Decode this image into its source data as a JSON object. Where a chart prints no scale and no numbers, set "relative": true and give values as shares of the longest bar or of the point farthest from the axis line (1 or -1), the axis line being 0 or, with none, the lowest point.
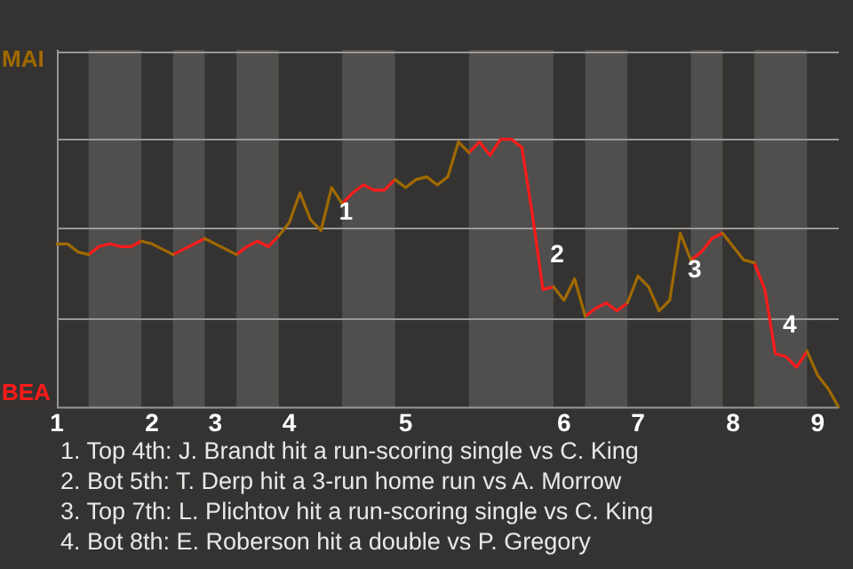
{
  "chart_data": {
    "type": "line",
    "relative": true,
    "marker": "none",
    "line_style": "solid",
    "ref_lines": [
      {
        "axis": "y",
        "value": 0.33,
        "color": "#9a9896"
      },
      {
        "axis": "y",
        "value": 0.67,
        "color": "#9a9896"
      },
      {
        "axis": "y",
        "value": 1,
        "color": "#9a9896"
      },
      {
        "axis": "y",
        "value": 1.33,
        "color": "#9a9896"
      }
    ],
    "categories": [
      "1",
      null,
      null,
      null,
      null,
      null,
      null,
      null,
      null,
      "2",
      null,
      null,
      null,
      null,
      null,
      "3",
      null,
      null,
      null,
      null,
      null,
      null,
      "4",
      null,
      null,
      null,
      null,
      null,
      null,
      null,
      null,
      null,
      null,
      "5",
      null,
      null,
      null,
      null,
      null,
      null,
      null,
      null,
      null,
      null,
      null,
      null,
      null,
      null,
      "6",
      null,
      null,
      null,
      null,
      null,
      null,
      "7",
      null,
      null,
      null,
      null,
      null,
      null,
      null,
      null,
      "8",
      null,
      null,
      null,
      null,
      null,
      null,
      null,
      "9",
      null,
      null
    ],
    "series": [
      {
        "name": "MAI",
        "color": "#a06a00",
        "values": [
          0.61,
          0.61,
          0.58,
          0.57,
          null,
          null,
          null,
          null,
          0.62,
          0.61,
          0.59,
          0.57,
          null,
          null,
          0.63,
          0.61,
          0.59,
          0.57,
          null,
          null,
          null,
          0.64,
          0.69,
          0.8,
          0.7,
          0.66,
          0.82,
          0.76,
          null,
          null,
          null,
          null,
          0.85,
          0.82,
          0.85,
          0.86,
          0.83,
          0.86,
          0.99,
          0.95,
          null,
          null,
          null,
          null,
          null,
          null,
          null,
          0.45,
          0.4,
          0.48,
          0.34,
          null,
          null,
          null,
          0.39,
          0.49,
          0.45,
          0.36,
          0.4,
          0.65,
          0.55,
          null,
          null,
          0.65,
          0.6,
          0.55,
          0.54,
          null,
          null,
          null,
          null,
          0.21,
          0.12,
          0.07,
          0
        ]
      },
      {
        "name": "BEA",
        "color": "#ff1a1a",
        "values": [
          null,
          null,
          null,
          0.57,
          0.6,
          0.61,
          0.6,
          0.6,
          0.62,
          null,
          null,
          0.57,
          0.59,
          0.61,
          0.63,
          null,
          null,
          0.57,
          0.6,
          0.62,
          0.6,
          0.64,
          null,
          null,
          null,
          null,
          null,
          0.76,
          0.8,
          0.83,
          0.81,
          0.81,
          0.85,
          null,
          null,
          null,
          null,
          null,
          null,
          0.95,
          0.99,
          0.94,
          1,
          1,
          0.97,
          0.72,
          0.44,
          0.45,
          null,
          null,
          0.34,
          0.37,
          0.39,
          0.36,
          0.39,
          null,
          null,
          null,
          null,
          null,
          0.55,
          0.58,
          0.63,
          0.65,
          null,
          null,
          0.54,
          0.44,
          0.2,
          0.19,
          0.15,
          0.21,
          null,
          null,
          null
        ]
      }
    ],
    "annotations": [
      "1",
      "2",
      "3",
      "4",
      "1. Top 4th: J. Brandt hit a run-scoring single vs C. King",
      "2. Bot 5th: T. Derp hit a 3-run home run vs A. Morrow",
      "3. Top 7th: L. Plichtov hit a run-scoring single vs C. King",
      "4. Bot 8th: E. Roberson hit a double vs P. Gregory"
    ]
  }
}
